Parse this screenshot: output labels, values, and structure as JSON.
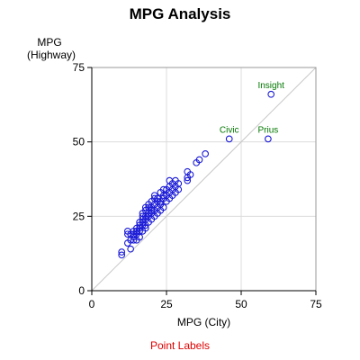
{
  "chart_data": {
    "type": "scatter",
    "title": "MPG Analysis",
    "xlabel": "MPG (City)",
    "ylabel_lines": [
      "MPG",
      "(Highway)"
    ],
    "xlim": [
      0,
      75
    ],
    "ylim": [
      0,
      75
    ],
    "xticks": [
      0,
      25,
      50,
      75
    ],
    "yticks": [
      0,
      25,
      50,
      75
    ],
    "grid": true,
    "reference_line": {
      "type": "diagonal",
      "from": [
        0,
        0
      ],
      "to": [
        75,
        75
      ]
    },
    "colors": {
      "points": "#1c1cd6",
      "labels": "#007700",
      "grid": "#dcdcdc",
      "reference": "#c8c8c8"
    },
    "points": [
      {
        "x": 10,
        "y": 12
      },
      {
        "x": 10,
        "y": 13
      },
      {
        "x": 12,
        "y": 16
      },
      {
        "x": 12,
        "y": 19
      },
      {
        "x": 12,
        "y": 20
      },
      {
        "x": 13,
        "y": 14
      },
      {
        "x": 13,
        "y": 17
      },
      {
        "x": 13,
        "y": 19
      },
      {
        "x": 14,
        "y": 17
      },
      {
        "x": 14,
        "y": 18
      },
      {
        "x": 14,
        "y": 19
      },
      {
        "x": 14,
        "y": 20
      },
      {
        "x": 15,
        "y": 17
      },
      {
        "x": 15,
        "y": 19
      },
      {
        "x": 15,
        "y": 20
      },
      {
        "x": 15,
        "y": 21
      },
      {
        "x": 16,
        "y": 18
      },
      {
        "x": 16,
        "y": 20
      },
      {
        "x": 16,
        "y": 21
      },
      {
        "x": 16,
        "y": 22
      },
      {
        "x": 16,
        "y": 23
      },
      {
        "x": 17,
        "y": 20
      },
      {
        "x": 17,
        "y": 22
      },
      {
        "x": 17,
        "y": 23
      },
      {
        "x": 17,
        "y": 24
      },
      {
        "x": 17,
        "y": 25
      },
      {
        "x": 17,
        "y": 26
      },
      {
        "x": 18,
        "y": 21
      },
      {
        "x": 18,
        "y": 22
      },
      {
        "x": 18,
        "y": 24
      },
      {
        "x": 18,
        "y": 25
      },
      {
        "x": 18,
        "y": 27
      },
      {
        "x": 18,
        "y": 28
      },
      {
        "x": 19,
        "y": 23
      },
      {
        "x": 19,
        "y": 25
      },
      {
        "x": 19,
        "y": 26
      },
      {
        "x": 19,
        "y": 28
      },
      {
        "x": 19,
        "y": 29
      },
      {
        "x": 20,
        "y": 24
      },
      {
        "x": 20,
        "y": 26
      },
      {
        "x": 20,
        "y": 27
      },
      {
        "x": 20,
        "y": 28
      },
      {
        "x": 20,
        "y": 30
      },
      {
        "x": 21,
        "y": 25
      },
      {
        "x": 21,
        "y": 27
      },
      {
        "x": 21,
        "y": 29
      },
      {
        "x": 21,
        "y": 31
      },
      {
        "x": 21,
        "y": 32
      },
      {
        "x": 22,
        "y": 26
      },
      {
        "x": 22,
        "y": 28
      },
      {
        "x": 22,
        "y": 30
      },
      {
        "x": 22,
        "y": 31
      },
      {
        "x": 23,
        "y": 27
      },
      {
        "x": 23,
        "y": 29
      },
      {
        "x": 23,
        "y": 30
      },
      {
        "x": 23,
        "y": 33
      },
      {
        "x": 24,
        "y": 28
      },
      {
        "x": 24,
        "y": 31
      },
      {
        "x": 24,
        "y": 32
      },
      {
        "x": 24,
        "y": 34
      },
      {
        "x": 25,
        "y": 30
      },
      {
        "x": 25,
        "y": 32
      },
      {
        "x": 25,
        "y": 34
      },
      {
        "x": 26,
        "y": 31
      },
      {
        "x": 26,
        "y": 33
      },
      {
        "x": 26,
        "y": 35
      },
      {
        "x": 26,
        "y": 37
      },
      {
        "x": 27,
        "y": 32
      },
      {
        "x": 27,
        "y": 34
      },
      {
        "x": 27,
        "y": 36
      },
      {
        "x": 28,
        "y": 33
      },
      {
        "x": 28,
        "y": 35
      },
      {
        "x": 28,
        "y": 37
      },
      {
        "x": 29,
        "y": 34
      },
      {
        "x": 29,
        "y": 36
      },
      {
        "x": 32,
        "y": 37
      },
      {
        "x": 32,
        "y": 38
      },
      {
        "x": 32,
        "y": 40
      },
      {
        "x": 33,
        "y": 39
      },
      {
        "x": 35,
        "y": 43
      },
      {
        "x": 36,
        "y": 44
      },
      {
        "x": 38,
        "y": 46
      },
      {
        "x": 46,
        "y": 51,
        "label": "Civic"
      },
      {
        "x": 59,
        "y": 51,
        "label": "Prius"
      },
      {
        "x": 60,
        "y": 66,
        "label": "Insight"
      }
    ]
  },
  "footer": {
    "link_text": "Point Labels"
  }
}
